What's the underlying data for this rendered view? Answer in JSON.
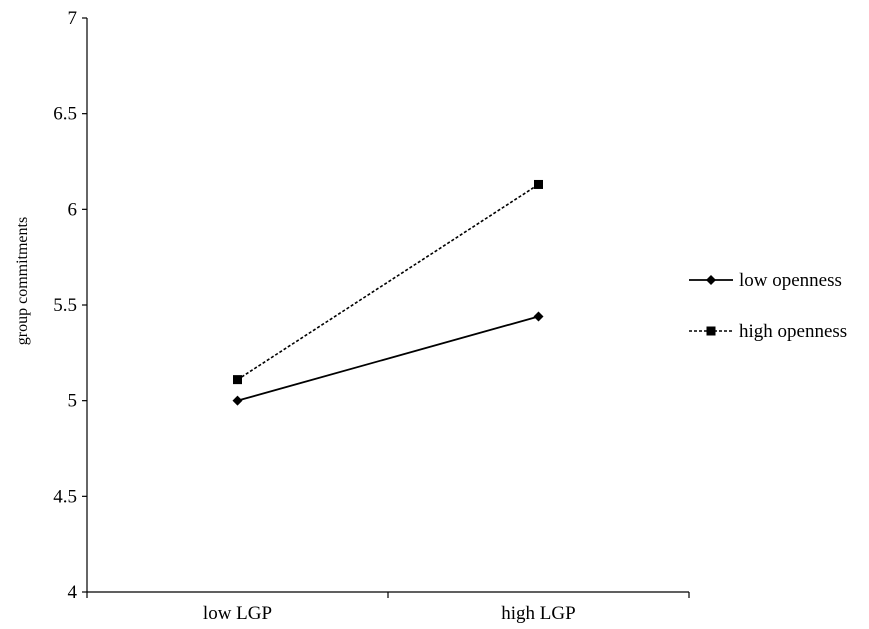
{
  "chart_data": {
    "type": "line",
    "title": "",
    "xlabel": "",
    "ylabel": "group commitments",
    "categories": [
      "low LGP",
      "high LGP"
    ],
    "ylim": [
      4,
      7
    ],
    "yticks": [
      "4",
      "4.5",
      "5",
      "5.5",
      "6",
      "6.5",
      "7"
    ],
    "grid": false,
    "legend_position": "right",
    "series": [
      {
        "name": "low openness",
        "values": [
          5.0,
          5.44
        ],
        "line_style": "solid",
        "marker": "diamond",
        "color": "#000000"
      },
      {
        "name": "high openness",
        "values": [
          5.11,
          6.13
        ],
        "line_style": "dashed",
        "marker": "square",
        "color": "#000000"
      }
    ]
  }
}
